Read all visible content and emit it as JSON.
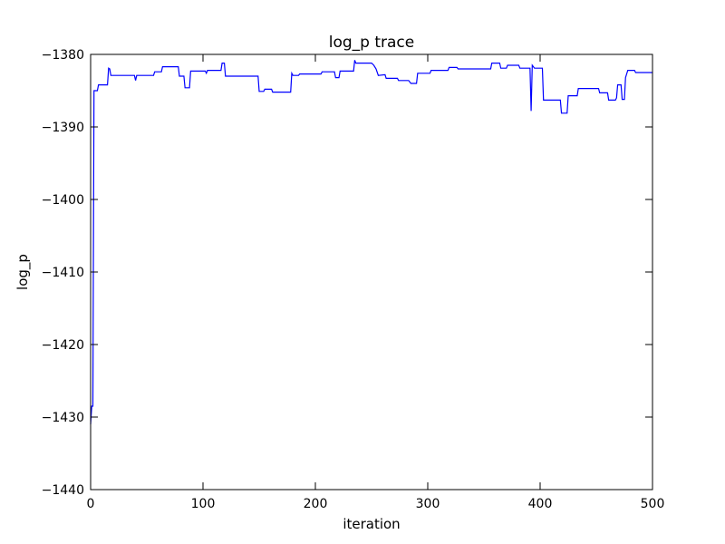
{
  "chart_data": {
    "type": "line",
    "title": "log_p trace",
    "xlabel": "iteration",
    "ylabel": "log_p",
    "xlim": [
      0,
      500
    ],
    "ylim": [
      -1440,
      -1380
    ],
    "x_ticks": [
      0,
      100,
      200,
      300,
      400,
      500
    ],
    "y_ticks": [
      -1440,
      -1430,
      -1420,
      -1410,
      -1400,
      -1390,
      -1380
    ],
    "x_tick_labels": [
      "0",
      "100",
      "200",
      "300",
      "400",
      "500"
    ],
    "y_tick_labels": [
      "−1440",
      "−1430",
      "−1420",
      "−1410",
      "−1400",
      "−1390",
      "−1380"
    ],
    "grid": false,
    "series": [
      {
        "color": "#0000ff",
        "points": [
          [
            0,
            -1431
          ],
          [
            1,
            -1428.5
          ],
          [
            2,
            -1428.5
          ],
          [
            3,
            -1385
          ],
          [
            5,
            -1385
          ],
          [
            6,
            -1385
          ],
          [
            7,
            -1384.2
          ],
          [
            15,
            -1384.2
          ],
          [
            16,
            -1381.9
          ],
          [
            17,
            -1382
          ],
          [
            18,
            -1382.9
          ],
          [
            39,
            -1382.9
          ],
          [
            40,
            -1383.6
          ],
          [
            41,
            -1382.9
          ],
          [
            56,
            -1382.9
          ],
          [
            57,
            -1382.4
          ],
          [
            63,
            -1382.4
          ],
          [
            64,
            -1381.7
          ],
          [
            78,
            -1381.7
          ],
          [
            79,
            -1383
          ],
          [
            83,
            -1383
          ],
          [
            84,
            -1384.6
          ],
          [
            88,
            -1384.6
          ],
          [
            89,
            -1382.3
          ],
          [
            102,
            -1382.3
          ],
          [
            103,
            -1382.6
          ],
          [
            104,
            -1382.2
          ],
          [
            116,
            -1382.2
          ],
          [
            117,
            -1381.2
          ],
          [
            119,
            -1381.2
          ],
          [
            120,
            -1383
          ],
          [
            149,
            -1383
          ],
          [
            150,
            -1385.1
          ],
          [
            154,
            -1385.1
          ],
          [
            155,
            -1384.8
          ],
          [
            161,
            -1384.8
          ],
          [
            162,
            -1385.2
          ],
          [
            178,
            -1385.2
          ],
          [
            179,
            -1382.6
          ],
          [
            180,
            -1382.9
          ],
          [
            185,
            -1382.9
          ],
          [
            186,
            -1382.7
          ],
          [
            205,
            -1382.7
          ],
          [
            206,
            -1382.4
          ],
          [
            217,
            -1382.4
          ],
          [
            218,
            -1383.2
          ],
          [
            221,
            -1383.2
          ],
          [
            222,
            -1382.3
          ],
          [
            234,
            -1382.3
          ],
          [
            235,
            -1380.8
          ],
          [
            236,
            -1381.2
          ],
          [
            250,
            -1381.2
          ],
          [
            252,
            -1381.5
          ],
          [
            254,
            -1382
          ],
          [
            256,
            -1382.9
          ],
          [
            262,
            -1382.8
          ],
          [
            263,
            -1383.3
          ],
          [
            273,
            -1383.3
          ],
          [
            274,
            -1383.6
          ],
          [
            283,
            -1383.6
          ],
          [
            285,
            -1384
          ],
          [
            290,
            -1384
          ],
          [
            291,
            -1382.6
          ],
          [
            302,
            -1382.6
          ],
          [
            303,
            -1382.2
          ],
          [
            318,
            -1382.2
          ],
          [
            319,
            -1381.8
          ],
          [
            326,
            -1381.8
          ],
          [
            327,
            -1382
          ],
          [
            356,
            -1382
          ],
          [
            357,
            -1381.2
          ],
          [
            364,
            -1381.2
          ],
          [
            365,
            -1381.9
          ],
          [
            370,
            -1381.9
          ],
          [
            371,
            -1381.5
          ],
          [
            381,
            -1381.5
          ],
          [
            382,
            -1381.9
          ],
          [
            391,
            -1381.9
          ],
          [
            392,
            -1387.8
          ],
          [
            393,
            -1381.5
          ],
          [
            395,
            -1381.9
          ],
          [
            402,
            -1381.9
          ],
          [
            403,
            -1386.3
          ],
          [
            418,
            -1386.3
          ],
          [
            419,
            -1388.1
          ],
          [
            424,
            -1388.1
          ],
          [
            425,
            -1385.7
          ],
          [
            433,
            -1385.7
          ],
          [
            434,
            -1384.7
          ],
          [
            452,
            -1384.7
          ],
          [
            453,
            -1385.3
          ],
          [
            460,
            -1385.3
          ],
          [
            461,
            -1386.3
          ],
          [
            467,
            -1386.3
          ],
          [
            468,
            -1386
          ],
          [
            469,
            -1384.2
          ],
          [
            472,
            -1384.2
          ],
          [
            473,
            -1386.2
          ],
          [
            475,
            -1386.2
          ],
          [
            476,
            -1383.2
          ],
          [
            478,
            -1382.2
          ],
          [
            484,
            -1382.2
          ],
          [
            485,
            -1382.5
          ],
          [
            500,
            -1382.5
          ]
        ]
      }
    ]
  }
}
